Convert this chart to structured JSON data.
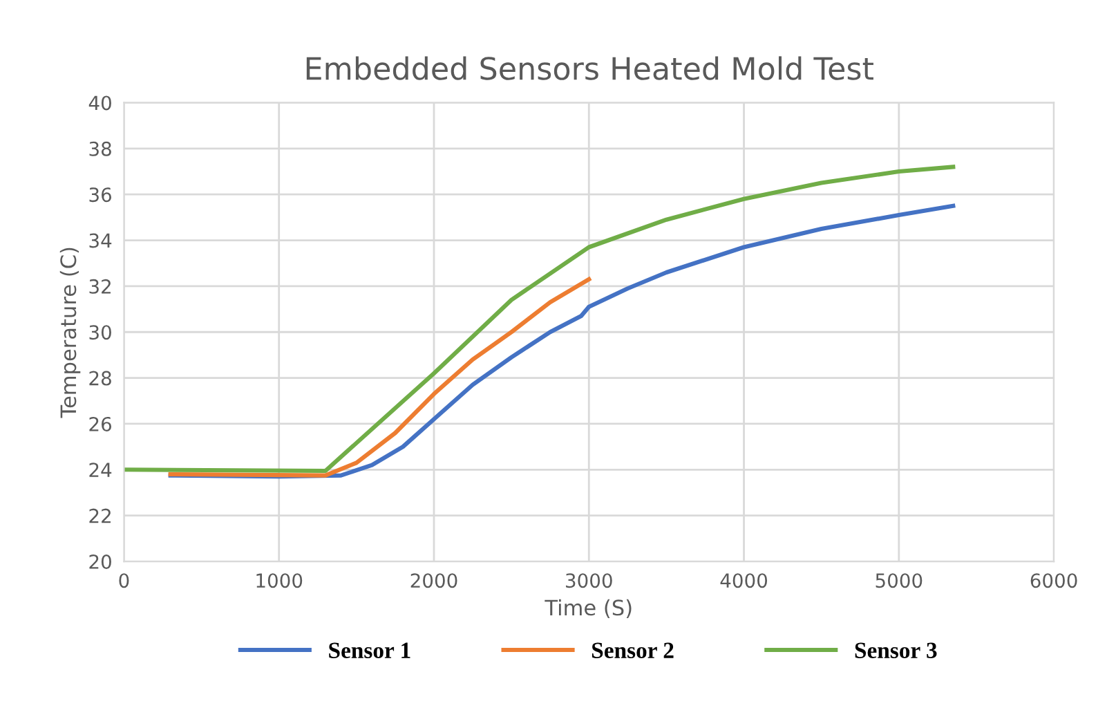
{
  "chart_data": {
    "type": "line",
    "title": "Embedded Sensors Heated Mold Test",
    "xlabel": "Time (S)",
    "ylabel": "Temperature (C)",
    "xlim": [
      0,
      6000
    ],
    "xticks": [
      0,
      1000,
      2000,
      3000,
      4000,
      5000,
      6000
    ],
    "ylim": [
      20,
      40
    ],
    "yticks": [
      20,
      22,
      24,
      26,
      28,
      30,
      32,
      34,
      36,
      38,
      40
    ],
    "grid": true,
    "legend": "bottom",
    "marker": "none",
    "line_style": "solid",
    "series": [
      {
        "name": "Sensor 1",
        "color": "#4472c4",
        "x": [
          300,
          1000,
          1400,
          1600,
          1800,
          2000,
          2250,
          2500,
          2750,
          2950,
          3000,
          3250,
          3500,
          4000,
          4500,
          5000,
          5350
        ],
        "values": [
          23.75,
          23.7,
          23.75,
          24.2,
          25.0,
          26.2,
          27.7,
          28.9,
          30.0,
          30.7,
          31.1,
          31.9,
          32.6,
          33.7,
          34.5,
          35.1,
          35.5
        ]
      },
      {
        "name": "Sensor 2",
        "color": "#ed7d31",
        "x": [
          300,
          1300,
          1500,
          1750,
          2000,
          2250,
          2500,
          2750,
          3000
        ],
        "values": [
          23.8,
          23.75,
          24.3,
          25.6,
          27.3,
          28.8,
          30.0,
          31.3,
          32.3
        ]
      },
      {
        "name": "Sensor 3",
        "color": "#70ad47",
        "x": [
          0,
          1300,
          2000,
          2500,
          3000,
          3500,
          4000,
          4500,
          5000,
          5350
        ],
        "values": [
          24.0,
          23.95,
          28.2,
          31.4,
          33.7,
          34.9,
          35.8,
          36.5,
          37.0,
          37.2
        ]
      }
    ]
  }
}
